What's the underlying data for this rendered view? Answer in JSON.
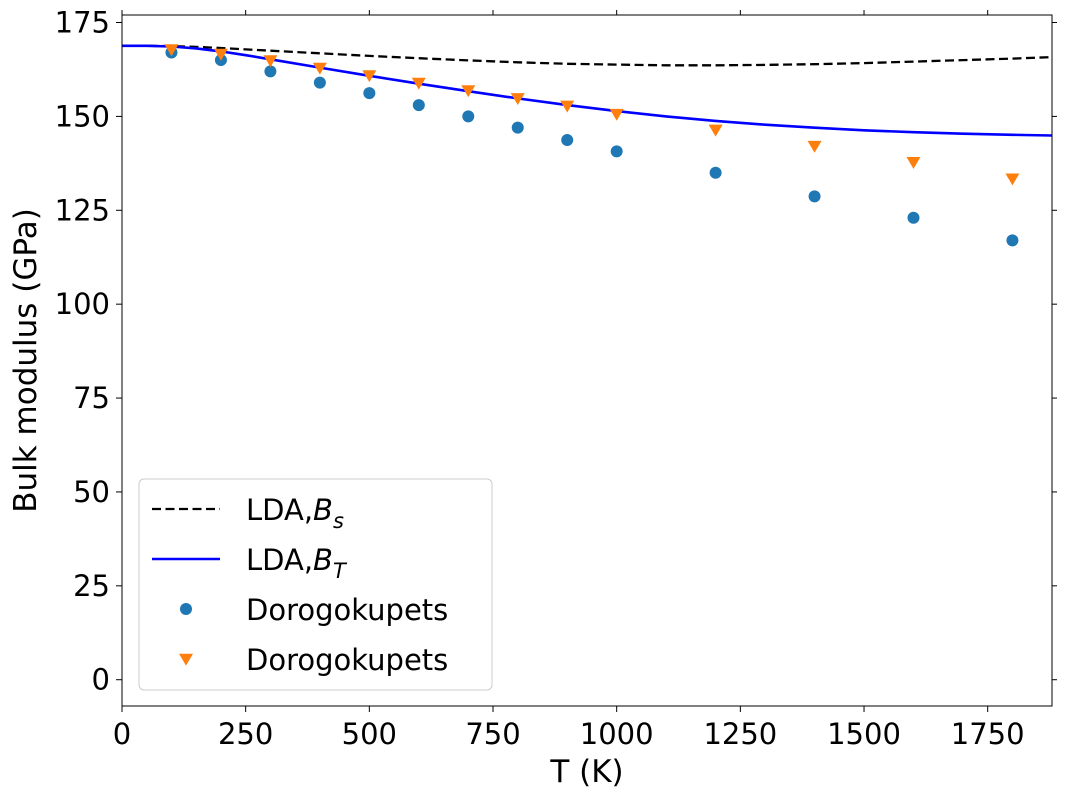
{
  "chart_data": {
    "type": "line",
    "title": "",
    "xlabel": "T (K)",
    "ylabel": "Bulk modulus (GPa)",
    "xlim": [
      0,
      1880
    ],
    "ylim": [
      -7,
      177
    ],
    "xticks": [
      0,
      250,
      500,
      750,
      1000,
      1250,
      1500,
      1750
    ],
    "yticks": [
      0,
      25,
      50,
      75,
      100,
      125,
      150,
      175
    ],
    "grid": false,
    "legend_position": "lower-left",
    "series": [
      {
        "name": "LDA,B_s",
        "label_main": "LDA,",
        "label_symbol": "B",
        "label_sub": "s",
        "kind": "line",
        "style": "dashed",
        "color": "#000000",
        "x": [
          0,
          50,
          100,
          150,
          200,
          300,
          400,
          500,
          600,
          700,
          800,
          900,
          1000,
          1100,
          1200,
          1300,
          1400,
          1500,
          1600,
          1700,
          1800,
          1880
        ],
        "y": [
          168.8,
          168.8,
          168.7,
          168.5,
          168.2,
          167.5,
          166.8,
          166.1,
          165.5,
          164.9,
          164.4,
          164.0,
          163.8,
          163.6,
          163.6,
          163.7,
          163.9,
          164.2,
          164.6,
          165.0,
          165.4,
          165.8
        ]
      },
      {
        "name": "LDA,B_T",
        "label_main": "LDA,",
        "label_symbol": "B",
        "label_sub": "T",
        "kind": "line",
        "style": "solid",
        "color": "#0000ff",
        "x": [
          0,
          50,
          100,
          150,
          200,
          250,
          300,
          400,
          500,
          600,
          700,
          800,
          900,
          1000,
          1100,
          1200,
          1300,
          1400,
          1500,
          1600,
          1700,
          1800,
          1880
        ],
        "y": [
          168.8,
          168.8,
          168.6,
          168.1,
          167.3,
          166.3,
          165.2,
          163.0,
          160.8,
          158.7,
          156.7,
          154.8,
          153.0,
          151.4,
          150.0,
          148.8,
          147.8,
          147.0,
          146.3,
          145.8,
          145.4,
          145.1,
          144.9
        ]
      },
      {
        "name": "Dorogokupets",
        "kind": "scatter",
        "marker": "circle",
        "color": "#1f77b4",
        "x": [
          100,
          200,
          300,
          400,
          500,
          600,
          700,
          800,
          900,
          1000,
          1200,
          1400,
          1600,
          1800
        ],
        "y": [
          167,
          165,
          162,
          159,
          156.2,
          153,
          150,
          147,
          143.7,
          140.7,
          135,
          128.7,
          123,
          117
        ]
      },
      {
        "name": "Dorogokupets",
        "kind": "scatter",
        "marker": "triangle-down",
        "color": "#ff7f0e",
        "x": [
          100,
          200,
          300,
          400,
          500,
          600,
          700,
          800,
          900,
          1000,
          1200,
          1400,
          1600,
          1800
        ],
        "y": [
          167.8,
          166.6,
          164.9,
          162.9,
          160.9,
          158.9,
          156.9,
          154.8,
          152.8,
          150.6,
          146.4,
          142.1,
          137.8,
          133.4
        ]
      }
    ]
  }
}
